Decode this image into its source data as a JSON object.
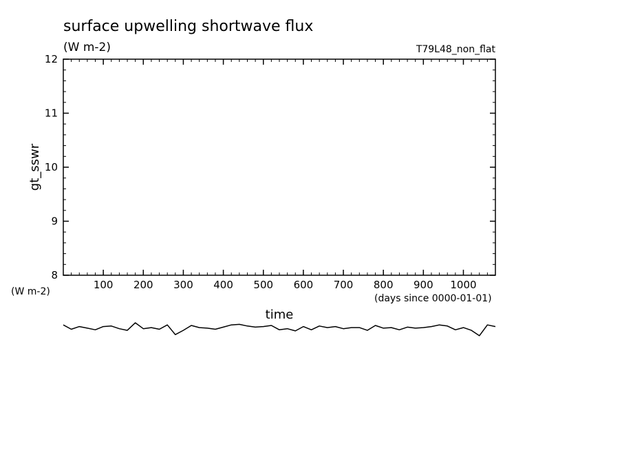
{
  "chart_data": {
    "type": "line",
    "title": "surface upwelling shortwave flux",
    "subtitle_units": "(W m-2)",
    "run_label": "T79L48_non_flat",
    "ylabel": "gt_sswr",
    "xlabel": "time",
    "x_units": "(days since 0000-01-01)",
    "y_units_left": "(W m-2)",
    "xlim": [
      0,
      1080
    ],
    "ylim": [
      8,
      12
    ],
    "x_ticks": [
      100,
      200,
      300,
      400,
      500,
      600,
      700,
      800,
      900,
      1000
    ],
    "x_tick_labels": [
      "100",
      "200",
      "300",
      "400",
      "500",
      "600",
      "700",
      "800",
      "900",
      "1000"
    ],
    "y_ticks": [
      8,
      9,
      10,
      11,
      12
    ],
    "y_tick_labels": [
      "8",
      "9",
      "10",
      "11",
      "12"
    ],
    "grid": false,
    "line_color": "#000000",
    "series": [
      {
        "x": [
          0,
          20,
          40,
          60,
          80,
          100,
          120,
          140,
          160,
          180,
          200,
          220,
          240,
          260,
          280,
          300,
          320,
          340,
          360,
          380,
          400,
          420,
          440,
          460,
          480,
          500,
          520,
          540,
          560,
          580,
          600,
          620,
          640,
          660,
          680,
          700,
          720,
          740,
          760,
          780,
          800,
          820,
          840,
          860,
          880,
          900,
          920,
          940,
          960,
          980,
          1000,
          1020,
          1040,
          1060,
          1080
        ],
        "y": [
          7.08,
          7.0,
          7.05,
          7.02,
          6.99,
          7.05,
          7.06,
          7.01,
          6.98,
          7.12,
          7.01,
          7.03,
          7.0,
          7.08,
          6.9,
          6.98,
          7.07,
          7.03,
          7.02,
          7.0,
          7.04,
          7.08,
          7.09,
          7.06,
          7.04,
          7.05,
          7.07,
          6.99,
          7.01,
          6.97,
          7.05,
          6.99,
          7.06,
          7.03,
          7.05,
          7.01,
          7.03,
          7.03,
          6.98,
          7.07,
          7.02,
          7.03,
          6.99,
          7.04,
          7.02,
          7.03,
          7.05,
          7.08,
          7.06,
          6.99,
          7.03,
          6.98,
          6.88,
          7.08,
          7.05
        ]
      }
    ]
  }
}
